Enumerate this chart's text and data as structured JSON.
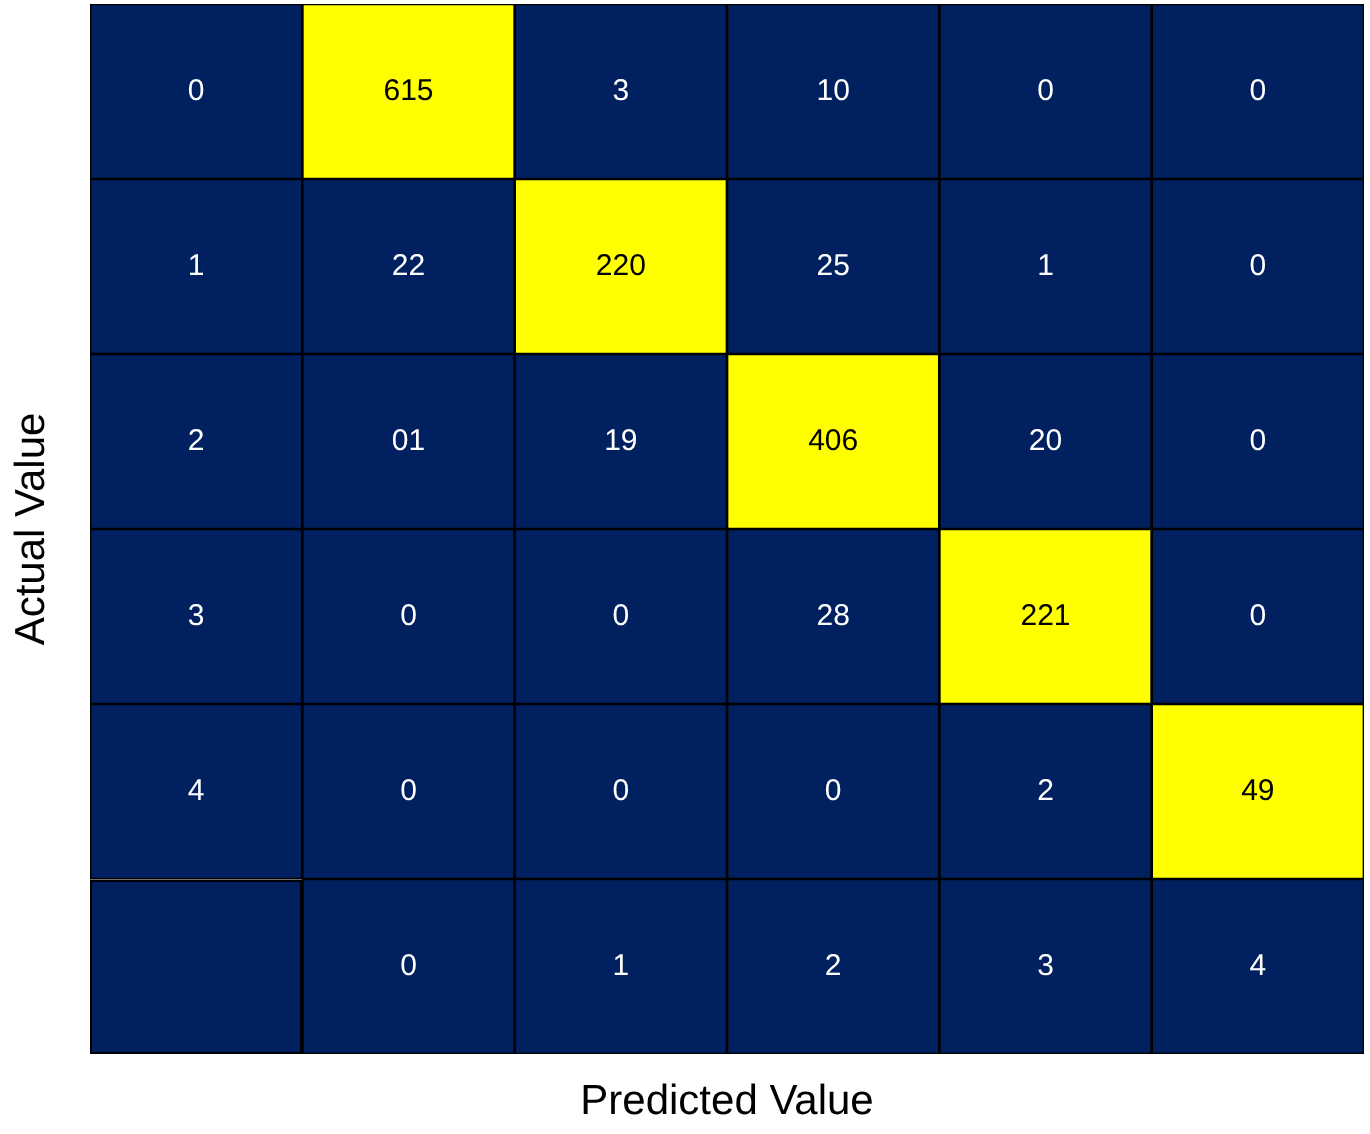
{
  "chart_data": {
    "type": "heatmap",
    "xlabel": "Predicted Value",
    "ylabel": "Actual Value",
    "categories": [
      "0",
      "1",
      "2",
      "3",
      "4"
    ],
    "y_categories": [
      "0",
      "1",
      "2",
      "3",
      "4"
    ],
    "cells": [
      [
        615,
        3,
        10,
        0,
        0
      ],
      [
        22,
        220,
        25,
        1,
        0
      ],
      [
        1,
        19,
        406,
        20,
        0
      ],
      [
        0,
        0,
        28,
        221,
        0
      ],
      [
        0,
        0,
        0,
        2,
        49
      ]
    ],
    "cell_labels": [
      [
        "615",
        "3",
        "10",
        "0",
        "0"
      ],
      [
        "22",
        "220",
        "25",
        "1",
        "0"
      ],
      [
        "01",
        "19",
        "406",
        "20",
        "0"
      ],
      [
        "0",
        "0",
        "28",
        "221",
        "0"
      ],
      [
        "0",
        "0",
        "0",
        "2",
        "49"
      ]
    ],
    "color": "#002060",
    "colors": [
      [
        "#ffff00",
        "#002060",
        "#002060",
        "#002060",
        "#002060"
      ],
      [
        "#002060",
        "#ffff00",
        "#002060",
        "#002060",
        "#002060"
      ],
      [
        "#002060",
        "#002060",
        "#ffff00",
        "#002060",
        "#002060"
      ],
      [
        "#002060",
        "#002060",
        "#002060",
        "#ffff00",
        "#002060"
      ],
      [
        "#002060",
        "#002060",
        "#002060",
        "#002060",
        "#ffff00"
      ]
    ]
  }
}
